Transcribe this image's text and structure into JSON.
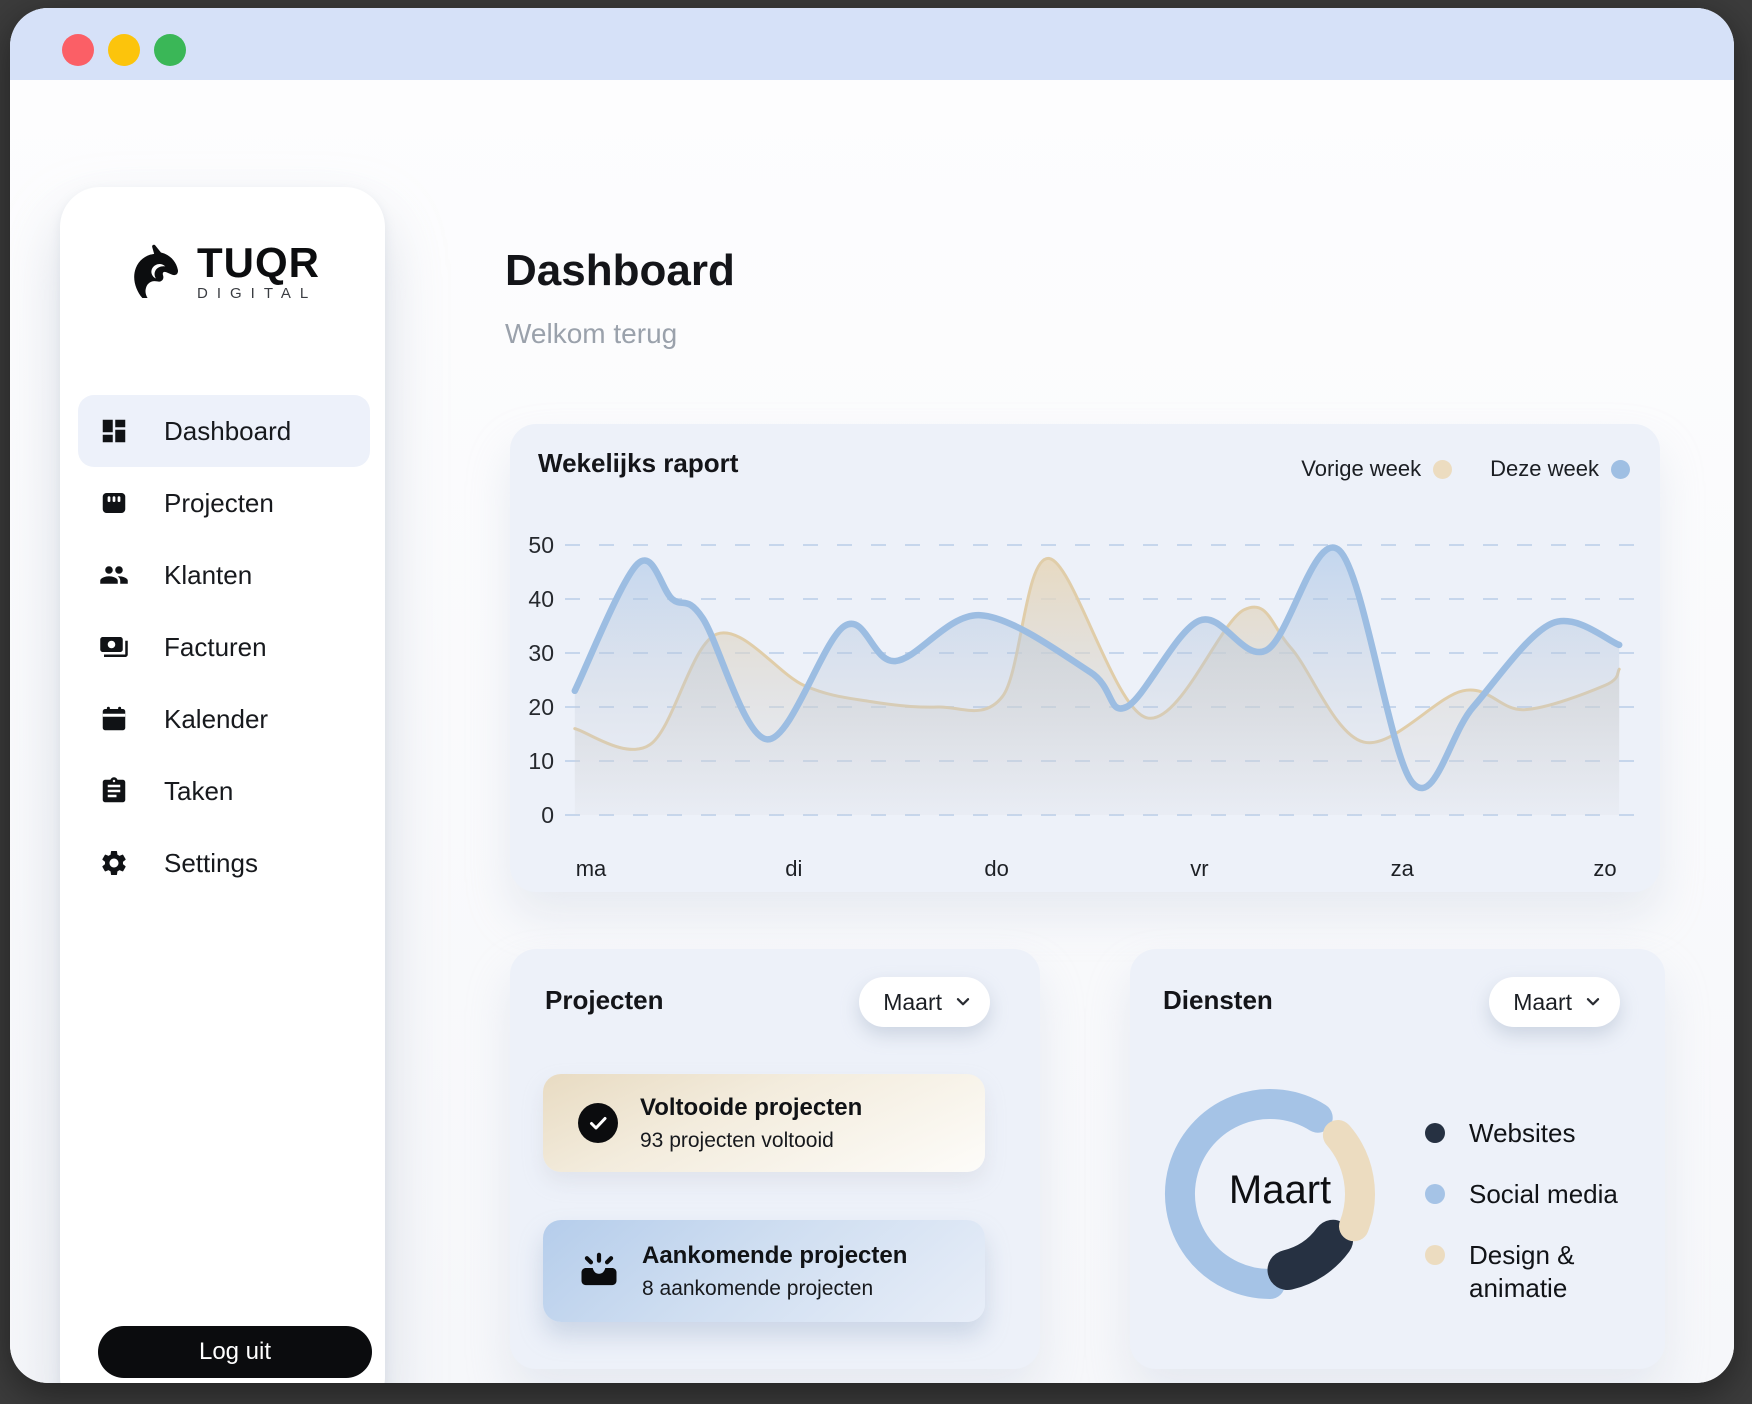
{
  "window": {
    "titlebar_color": "#d6e1f8",
    "traffic_lights": [
      {
        "name": "close",
        "color": "#fb5f66"
      },
      {
        "name": "minimize",
        "color": "#fcc40c"
      },
      {
        "name": "zoom",
        "color": "#3ab757"
      }
    ]
  },
  "sidebar": {
    "brand": {
      "name": "TUQR",
      "tagline": "DIGITAL"
    },
    "items": [
      {
        "label": "Dashboard",
        "icon": "dashboard-icon",
        "active": true
      },
      {
        "label": "Projecten",
        "icon": "projects-icon",
        "active": false
      },
      {
        "label": "Klanten",
        "icon": "clients-icon",
        "active": false
      },
      {
        "label": "Facturen",
        "icon": "invoices-icon",
        "active": false
      },
      {
        "label": "Kalender",
        "icon": "calendar-icon",
        "active": false
      },
      {
        "label": "Taken",
        "icon": "tasks-icon",
        "active": false
      },
      {
        "label": "Settings",
        "icon": "settings-icon",
        "active": false
      }
    ],
    "logout_label": "Log uit"
  },
  "header": {
    "title": "Dashboard",
    "subtitle": "Welkom terug"
  },
  "weekly_card": {
    "title": "Wekelijks raport",
    "legend": [
      {
        "label": "Vorige week",
        "color": "#ecdcc0"
      },
      {
        "label": "Deze week",
        "color": "#9fbfe3"
      }
    ]
  },
  "chart_data": [
    {
      "type": "area",
      "title": "Wekelijks raport",
      "categories": [
        "ma",
        "di",
        "do",
        "vr",
        "za",
        "zo"
      ],
      "ylim": [
        0,
        50
      ],
      "yticks": [
        0,
        10,
        20,
        30,
        40,
        50
      ],
      "grid": "horizontal-dashed",
      "legend_position": "top-right",
      "series": [
        {
          "name": "Vorige week",
          "line_color": "#e0cda9",
          "fill_color": "#ead9bb",
          "values_at_days": [
            14.5,
            25,
            21,
            33,
            21.5,
            24
          ],
          "points": [
            [
              -0.08,
              16
            ],
            [
              0.29,
              13
            ],
            [
              0.62,
              33.5
            ],
            [
              1.05,
              24
            ],
            [
              1.38,
              21
            ],
            [
              1.71,
              20
            ],
            [
              2.03,
              22
            ],
            [
              2.26,
              47.5
            ],
            [
              2.74,
              18
            ],
            [
              3.22,
              38
            ],
            [
              3.45,
              31
            ],
            [
              3.81,
              13.5
            ],
            [
              4.3,
              23
            ],
            [
              4.6,
              19.5
            ],
            [
              5.0,
              24
            ],
            [
              5.07,
              27
            ]
          ]
        },
        {
          "name": "Deze week",
          "line_color": "#9cbde2",
          "fill_color": "#b8cfec",
          "values_at_days": [
            34,
            30,
            37.5,
            36,
            8,
            32
          ],
          "points": [
            [
              -0.08,
              23
            ],
            [
              0.23,
              46.5
            ],
            [
              0.4,
              40
            ],
            [
              0.55,
              36.5
            ],
            [
              0.87,
              14
            ],
            [
              1.25,
              35
            ],
            [
              1.5,
              28.5
            ],
            [
              1.92,
              37
            ],
            [
              2.46,
              26.5
            ],
            [
              2.64,
              20
            ],
            [
              3.0,
              36
            ],
            [
              3.33,
              30.5
            ],
            [
              3.69,
              49
            ],
            [
              4.05,
              6
            ],
            [
              4.35,
              20
            ],
            [
              4.74,
              35.5
            ],
            [
              5.07,
              31.5
            ]
          ]
        }
      ]
    },
    {
      "type": "donut",
      "title": "Diensten",
      "center_label": "Maart",
      "segments": [
        {
          "name": "Social media",
          "color": "#a5c3e6",
          "start_deg": 58,
          "end_deg": 270,
          "radius": 90,
          "thickness": 30
        },
        {
          "name": "Websites",
          "color": "#263142",
          "start_deg": 283,
          "end_deg": 324,
          "radius": 78,
          "thickness": 40
        },
        {
          "name": "Design & animatie",
          "color": "#ecdcc0",
          "start_deg": 339,
          "end_deg": 401,
          "radius": 90,
          "thickness": 30
        }
      ]
    }
  ],
  "projects_card": {
    "title": "Projecten",
    "month_filter": "Maart",
    "items": [
      {
        "title": "Voltooide projecten",
        "subtitle": "93 projecten voltooid",
        "icon": "check-circle-icon",
        "theme": "beige"
      },
      {
        "title": "Aankomende projecten",
        "subtitle": "8 aankomende projecten",
        "icon": "upcoming-icon",
        "theme": "blue"
      }
    ]
  },
  "services_card": {
    "title": "Diensten",
    "month_filter": "Maart",
    "center_label": "Maart",
    "legend": [
      {
        "label": "Websites",
        "color": "#263142"
      },
      {
        "label": "Social media",
        "color": "#a5c3e6"
      },
      {
        "label": "Design & animatie",
        "color": "#ecdcc0"
      }
    ]
  }
}
